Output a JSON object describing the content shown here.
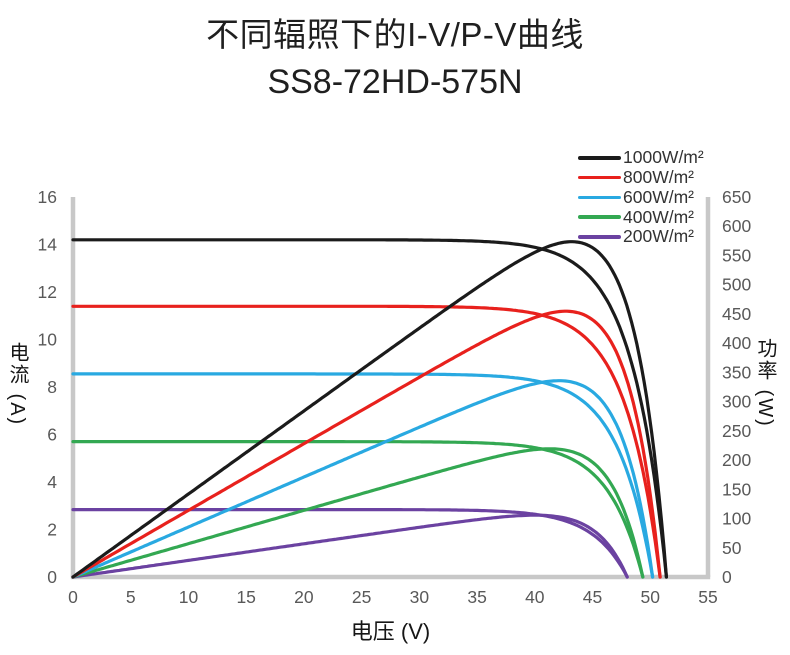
{
  "chart_data": {
    "type": "line",
    "title": "不同辐照下的I-V/P-V曲线",
    "subtitle": "SS8-72HD-575N",
    "grid": false,
    "legend_position": "top-right",
    "x_axis": {
      "label": "电压 (V)",
      "range": [
        0,
        55
      ],
      "tick_step": 5,
      "ticks": [
        0,
        5,
        10,
        15,
        20,
        25,
        30,
        35,
        40,
        45,
        50,
        55
      ]
    },
    "y_axis_left": {
      "label": "电流 (A)",
      "range": [
        0,
        16
      ],
      "tick_step": 2,
      "ticks": [
        0,
        2,
        4,
        6,
        8,
        10,
        12,
        14,
        16
      ]
    },
    "y_axis_right": {
      "label": "功率 (W)",
      "range": [
        0,
        650
      ],
      "tick_step": 50,
      "ticks": [
        0,
        50,
        100,
        150,
        200,
        250,
        300,
        350,
        400,
        450,
        500,
        550,
        600,
        650
      ]
    },
    "series": [
      {
        "name": "1000W/m²",
        "irradiance": 1000,
        "color": "#1b1b1b",
        "iv_curve": {
          "isc_A": 14.2,
          "voc_V": 51.4,
          "vmp_V": 43.2,
          "imp_A": 13.3
        },
        "pv_curve": {
          "pmax_W": 575,
          "vmp_V": 43.2
        }
      },
      {
        "name": "800W/m²",
        "irradiance": 800,
        "color": "#e8211d",
        "iv_curve": {
          "isc_A": 11.4,
          "voc_V": 50.85,
          "vmp_V": 42.7,
          "imp_A": 10.7
        },
        "pv_curve": {
          "pmax_W": 455,
          "vmp_V": 42.7
        }
      },
      {
        "name": "600W/m²",
        "irradiance": 600,
        "color": "#29a9e1",
        "iv_curve": {
          "isc_A": 8.55,
          "voc_V": 50.2,
          "vmp_V": 42.1,
          "imp_A": 8.0
        },
        "pv_curve": {
          "pmax_W": 337,
          "vmp_V": 42.1
        }
      },
      {
        "name": "400W/m²",
        "irradiance": 400,
        "color": "#33a852",
        "iv_curve": {
          "isc_A": 5.7,
          "voc_V": 49.35,
          "vmp_V": 41.3,
          "imp_A": 5.3
        },
        "pv_curve": {
          "pmax_W": 220,
          "vmp_V": 41.3
        }
      },
      {
        "name": "200W/m²",
        "irradiance": 200,
        "color": "#6b42a1",
        "iv_curve": {
          "isc_A": 2.84,
          "voc_V": 48.0,
          "vmp_V": 40.0,
          "imp_A": 2.65
        },
        "pv_curve": {
          "pmax_W": 106,
          "vmp_V": 40.0
        }
      }
    ],
    "curve_model": {
      "knee_V": 3.0
    }
  },
  "colors": {
    "axis_line": "#c8c8c8",
    "tick_text": "#595959",
    "title_text": "#1f1f1f"
  }
}
